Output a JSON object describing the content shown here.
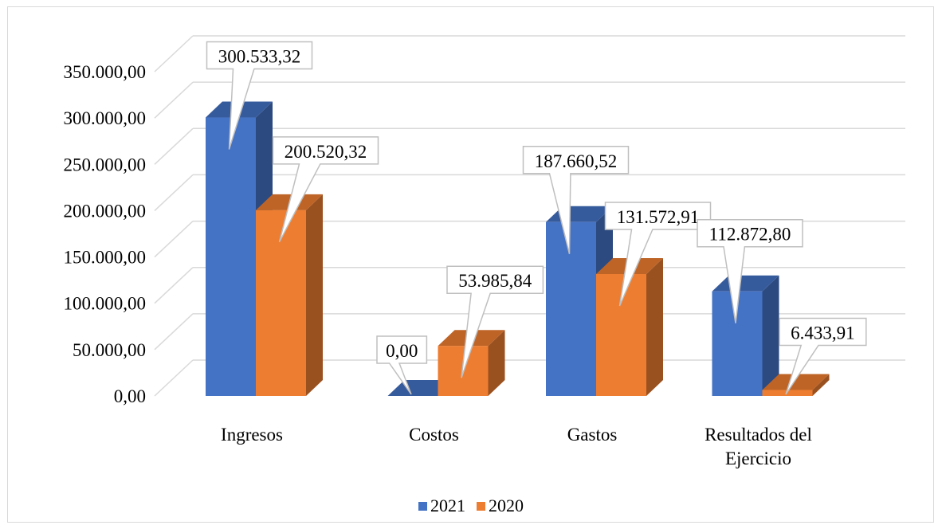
{
  "chart_data": {
    "type": "bar",
    "categories": [
      "Ingresos",
      "Costos",
      "Gastos",
      "Resultados del Ejercicio"
    ],
    "category_lines": [
      [
        "Ingresos"
      ],
      [
        "Costos"
      ],
      [
        "Gastos"
      ],
      [
        "Resultados del",
        "Ejercicio"
      ]
    ],
    "series": [
      {
        "name": "2021",
        "color": "#4472c4",
        "values": [
          300533.32,
          0,
          187660.52,
          112872.8
        ],
        "labels": [
          "300.533,32",
          "0,00",
          "187.660,52",
          "112.872,80"
        ]
      },
      {
        "name": "2020",
        "color": "#ed7d31",
        "values": [
          200520.32,
          53985.84,
          131572.91,
          6433.91
        ],
        "labels": [
          "200.520,32",
          "53.985,84",
          "131.572,91",
          "6.433,91"
        ]
      }
    ],
    "yticks": [
      0,
      50000,
      100000,
      150000,
      200000,
      250000,
      300000,
      350000
    ],
    "ytick_labels": [
      "0,00",
      "50.000,00",
      "100.000,00",
      "150.000,00",
      "200.000,00",
      "250.000,00",
      "300.000,00",
      "350.000,00"
    ],
    "ylim": [
      0,
      350000
    ],
    "grid": true,
    "legend_position": "bottom",
    "three_d": true
  }
}
